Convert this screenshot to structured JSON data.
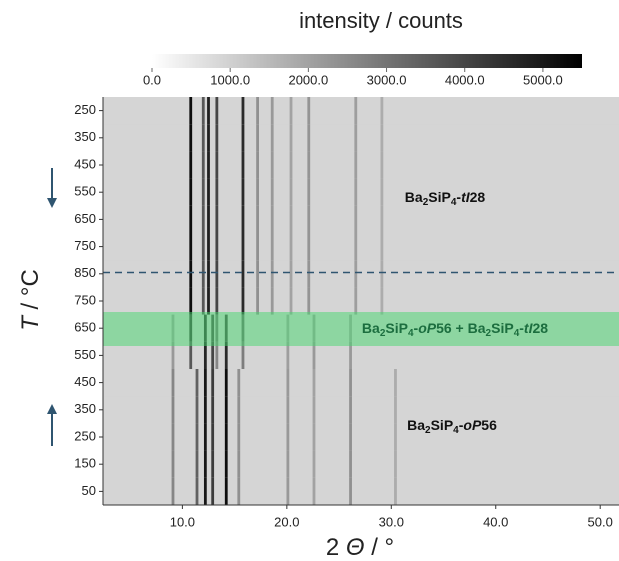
{
  "chart_data": {
    "type": "heatmap",
    "colorbar_title": "intensity / counts",
    "zlim": [
      0,
      5500
    ],
    "zticks": [
      {
        "value": 0,
        "label": "0.0"
      },
      {
        "value": 1000,
        "label": "1000.0"
      },
      {
        "value": 2000,
        "label": "2000.0"
      },
      {
        "value": 3000,
        "label": "3000.0"
      },
      {
        "value": 4000,
        "label": "4000.0"
      },
      {
        "value": 5000,
        "label": "5000.0"
      }
    ],
    "y_label_parts": [
      "T",
      " / °C"
    ],
    "x_label_parts": [
      "2 ",
      "Θ",
      " / °"
    ],
    "xlim": [
      2.4,
      51.8
    ],
    "xticks": [
      {
        "value": 10,
        "label": "10.0"
      },
      {
        "value": 20,
        "label": "20.0"
      },
      {
        "value": 30,
        "label": "30.0"
      },
      {
        "value": 40,
        "label": "40.0"
      },
      {
        "value": 50,
        "label": "50.0"
      }
    ],
    "categories": [
      250,
      350,
      450,
      550,
      650,
      750,
      850,
      750,
      650,
      550,
      450,
      350,
      250,
      150,
      50
    ],
    "background": 900,
    "rows": [
      {
        "peaks": [
          10.8,
          12.0,
          12.5,
          13.3,
          15.8,
          17.2,
          18.6,
          20.4,
          22.1,
          26.6,
          29.1
        ],
        "intensity": [
          5200,
          3600,
          4800,
          4000,
          4600,
          2400,
          2200,
          2000,
          2300,
          2100,
          1800
        ]
      },
      {
        "peaks": [
          10.8,
          12.0,
          12.5,
          13.3,
          15.8,
          17.2,
          18.6,
          20.4,
          22.1,
          26.6,
          29.1
        ],
        "intensity": [
          5200,
          3600,
          4800,
          4000,
          4600,
          2400,
          2200,
          2000,
          2300,
          2100,
          1800
        ]
      },
      {
        "peaks": [
          10.8,
          12.0,
          12.5,
          13.3,
          15.8,
          17.2,
          18.6,
          20.4,
          22.1,
          26.6,
          29.1
        ],
        "intensity": [
          5200,
          3600,
          4800,
          4000,
          4600,
          2400,
          2200,
          2000,
          2300,
          2100,
          1800
        ]
      },
      {
        "peaks": [
          10.8,
          12.0,
          12.5,
          13.3,
          15.8,
          17.2,
          18.6,
          20.4,
          22.1,
          26.6,
          29.1
        ],
        "intensity": [
          5200,
          3600,
          4800,
          4000,
          4600,
          2400,
          2200,
          2000,
          2300,
          2100,
          1800
        ]
      },
      {
        "peaks": [
          10.8,
          12.0,
          12.5,
          13.3,
          15.8,
          17.2,
          18.6,
          20.4,
          22.1,
          26.6,
          29.1
        ],
        "intensity": [
          5200,
          3600,
          4800,
          4000,
          4600,
          2400,
          2200,
          2000,
          2300,
          2100,
          1800
        ]
      },
      {
        "peaks": [
          10.8,
          12.0,
          12.5,
          13.3,
          15.8,
          17.2,
          18.6,
          20.4,
          22.1,
          26.6,
          29.1
        ],
        "intensity": [
          5200,
          3600,
          4800,
          4000,
          4600,
          2400,
          2200,
          2000,
          2300,
          2100,
          1800
        ]
      },
      {
        "peaks": [
          10.8,
          12.0,
          12.5,
          13.3,
          15.8,
          17.2,
          18.6,
          20.4,
          22.1,
          26.6,
          29.1
        ],
        "intensity": [
          5200,
          3600,
          4800,
          4000,
          4600,
          2400,
          2200,
          2000,
          2300,
          2100,
          1800
        ]
      },
      {
        "peaks": [
          10.8,
          12.0,
          12.5,
          13.3,
          15.8,
          17.2,
          18.6,
          20.4,
          22.1,
          26.6,
          29.1
        ],
        "intensity": [
          5200,
          3600,
          4800,
          4000,
          4600,
          2400,
          2200,
          2000,
          2300,
          2100,
          1800
        ]
      },
      {
        "peaks": [
          9.1,
          10.8,
          12.2,
          12.9,
          13.3,
          14.2,
          15.8,
          20.1,
          22.6,
          26.1
        ],
        "intensity": [
          2000,
          4200,
          4400,
          3800,
          3000,
          4000,
          3200,
          2000,
          2100,
          2000
        ]
      },
      {
        "peaks": [
          9.1,
          10.8,
          12.2,
          12.9,
          13.3,
          14.2,
          15.8,
          20.1,
          22.6,
          26.1
        ],
        "intensity": [
          2200,
          3600,
          4700,
          4000,
          2600,
          4600,
          2800,
          2100,
          2200,
          2200
        ]
      },
      {
        "peaks": [
          9.1,
          11.4,
          12.2,
          12.9,
          14.2,
          15.4,
          20.1,
          22.6,
          26.1,
          30.4
        ],
        "intensity": [
          2600,
          3400,
          5000,
          4200,
          5200,
          2400,
          2200,
          2000,
          2400,
          1800
        ]
      },
      {
        "peaks": [
          9.1,
          11.4,
          12.2,
          12.9,
          14.2,
          15.4,
          20.1,
          22.6,
          26.1,
          30.4
        ],
        "intensity": [
          2600,
          3400,
          5000,
          4200,
          5200,
          2400,
          2200,
          2000,
          2400,
          1800
        ]
      },
      {
        "peaks": [
          9.1,
          11.4,
          12.2,
          12.9,
          14.2,
          15.4,
          20.1,
          22.6,
          26.1,
          30.4
        ],
        "intensity": [
          2600,
          3400,
          5000,
          4200,
          5200,
          2400,
          2200,
          2000,
          2400,
          1800
        ]
      },
      {
        "peaks": [
          9.1,
          11.4,
          12.2,
          12.9,
          14.2,
          15.4,
          20.1,
          22.6,
          26.1,
          30.4
        ],
        "intensity": [
          2600,
          3400,
          5000,
          4200,
          5200,
          2400,
          2200,
          2000,
          2400,
          1800
        ]
      },
      {
        "peaks": [
          9.1,
          11.4,
          12.2,
          12.9,
          14.2,
          15.4,
          20.1,
          22.6,
          26.1,
          30.4
        ],
        "intensity": [
          2600,
          3400,
          5000,
          4200,
          5200,
          2400,
          2200,
          2000,
          2400,
          1800
        ]
      }
    ],
    "annotations": [
      {
        "parts": [
          "Ba",
          "2",
          "SiP",
          "4",
          "-",
          "tI",
          "28"
        ]
      },
      {
        "parts": [
          "Ba",
          "2",
          "SiP",
          "4",
          "-",
          "oP",
          "56",
          " + ",
          "Ba",
          "2",
          "SiP",
          "4",
          "-",
          "tI",
          "28"
        ]
      },
      {
        "parts": [
          "Ba",
          "2",
          "SiP",
          "4",
          "-",
          "oP",
          "56"
        ]
      }
    ]
  }
}
